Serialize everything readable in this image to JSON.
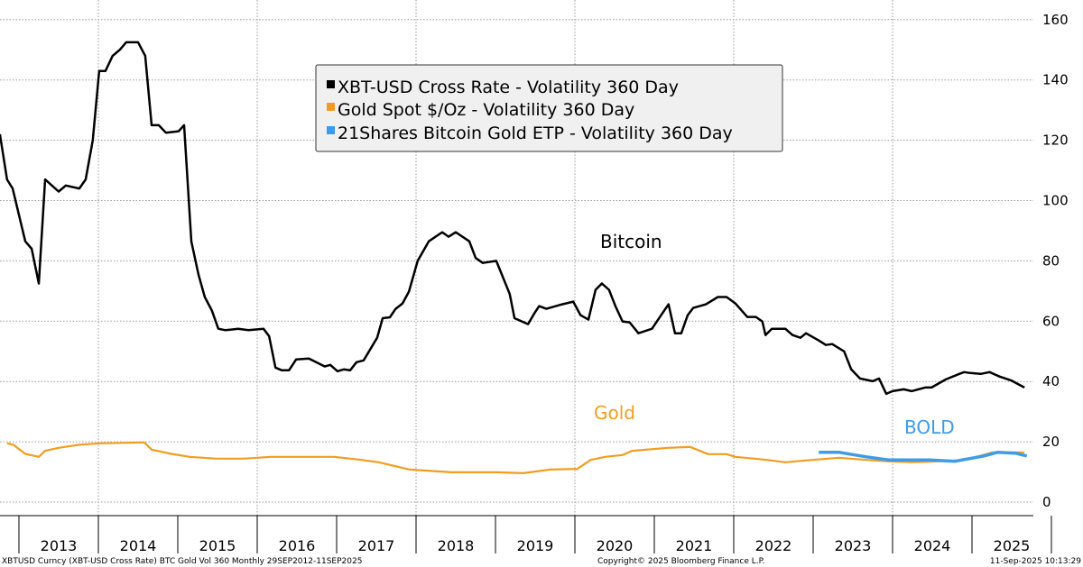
{
  "chart_data": {
    "type": "line",
    "title": "",
    "xlabel": "",
    "ylabel": "",
    "xlim": [
      2012.75,
      2025.7
    ],
    "ylim": [
      0,
      160
    ],
    "y_ticks": [
      "0",
      "20",
      "40",
      "60",
      "80",
      "100",
      "120",
      "140",
      "160"
    ],
    "x_tick_labels": [
      "2013",
      "2014",
      "2015",
      "2016",
      "2017",
      "2018",
      "2019",
      "2020",
      "2021",
      "2022",
      "2023",
      "2024",
      "2025"
    ],
    "grid": true,
    "legend_position": "top-center",
    "legend": [
      {
        "label": "XBT-USD Cross Rate - Volatility 360 Day",
        "color": "#000000"
      },
      {
        "label": "Gold Spot $/Oz - Volatility 360 Day",
        "color": "#F39C1F"
      },
      {
        "label": "21Shares Bitcoin Gold ETP - Volatility 360 Day",
        "color": "#3D9BE9"
      }
    ],
    "annotations": [
      {
        "text": "Bitcoin",
        "color": "#000000"
      },
      {
        "text": "Gold",
        "color": "#F39C1F"
      },
      {
        "text": "BOLD",
        "color": "#3D9BE9"
      }
    ],
    "series": [
      {
        "name": "XBT-USD Cross Rate - Volatility 360 Day",
        "color": "#000000",
        "x": [
          2012.76,
          2012.85,
          2012.92,
          2013.08,
          2013.16,
          2013.25,
          2013.33,
          2013.5,
          2013.59,
          2013.76,
          2013.84,
          2013.93,
          2014.01,
          2014.09,
          2014.18,
          2014.27,
          2014.35,
          2014.5,
          2014.59,
          2014.67,
          2014.76,
          2014.85,
          2015.01,
          2015.08,
          2015.17,
          2015.26,
          2015.34,
          2015.43,
          2015.51,
          2015.6,
          2015.76,
          2015.89,
          2016.08,
          2016.15,
          2016.23,
          2016.31,
          2016.4,
          2016.49,
          2016.65,
          2016.85,
          2016.92,
          2017.01,
          2017.09,
          2017.17,
          2017.25,
          2017.34,
          2017.51,
          2017.58,
          2017.67,
          2017.74,
          2017.83,
          2017.91,
          2018.02,
          2018.16,
          2018.33,
          2018.41,
          2018.5,
          2018.67,
          2018.75,
          2018.84,
          2019.01,
          2019.18,
          2019.24,
          2019.41,
          2019.49,
          2019.55,
          2019.64,
          2019.84,
          2019.98,
          2020.07,
          2020.17,
          2020.26,
          2020.34,
          2020.43,
          2020.51,
          2020.6,
          2020.69,
          2020.8,
          2020.97,
          2021.14,
          2021.18,
          2021.26,
          2021.34,
          2021.42,
          2021.49,
          2021.65,
          2021.8,
          2021.91,
          2022.02,
          2022.17,
          2022.28,
          2022.36,
          2022.4,
          2022.48,
          2022.65,
          2022.74,
          2022.84,
          2022.91,
          2023.07,
          2023.16,
          2023.24,
          2023.39,
          2023.48,
          2023.59,
          2023.75,
          2023.83,
          2023.92,
          2024.0,
          2024.14,
          2024.24,
          2024.41,
          2024.49,
          2024.67,
          2024.84,
          2024.9,
          2024.98,
          2025.11,
          2025.22,
          2025.35,
          2025.49,
          2025.66
        ],
        "y": [
          122,
          107,
          104,
          86.5,
          84,
          72.5,
          107,
          103,
          105,
          104,
          107,
          120,
          143,
          143,
          148,
          150,
          152.5,
          152.5,
          148,
          125,
          125,
          122.5,
          123,
          125,
          86.5,
          75.5,
          68,
          63.5,
          57.5,
          57,
          57.5,
          57,
          57.5,
          55,
          44.6,
          43.7,
          43.7,
          47.3,
          47.6,
          45,
          45.5,
          43.4,
          44,
          43.7,
          46.4,
          47,
          54.5,
          61,
          61.3,
          64,
          65.9,
          69.8,
          80,
          86.5,
          89.5,
          88,
          89.5,
          86.5,
          81,
          79.3,
          80,
          69,
          61,
          59,
          62.6,
          65,
          64.1,
          65.6,
          66.5,
          62,
          60.5,
          70.4,
          72.5,
          70.4,
          65,
          59.9,
          59.6,
          56,
          57.5,
          64.1,
          65.6,
          56,
          56,
          62,
          64.4,
          65.6,
          68,
          68,
          65.9,
          61.4,
          61.4,
          59.9,
          55.4,
          57.5,
          57.5,
          55.4,
          54.5,
          56,
          53.6,
          52.1,
          52.4,
          50,
          44,
          41,
          40.1,
          41,
          35.9,
          36.8,
          37.4,
          36.8,
          38,
          38,
          40.7,
          42.5,
          43.1,
          42.8,
          42.5,
          43.1,
          41.6,
          40.4,
          38
        ]
      },
      {
        "name": "Gold Spot $/Oz - Volatility 360 Day",
        "color": "#F39C1F",
        "x": [
          2012.85,
          2012.93,
          2013.08,
          2013.25,
          2013.33,
          2013.5,
          2013.76,
          2014.01,
          2014.58,
          2014.67,
          2014.92,
          2015.15,
          2015.49,
          2015.83,
          2016.17,
          2016.51,
          2016.97,
          2017.31,
          2017.53,
          2017.92,
          2018.44,
          2019.01,
          2019.35,
          2019.69,
          2020.03,
          2020.2,
          2020.38,
          2020.6,
          2020.72,
          2021.17,
          2021.45,
          2021.68,
          2021.91,
          2022.02,
          2022.42,
          2022.65,
          2022.99,
          2023.33,
          2023.67,
          2023.95,
          2024.24,
          2024.58,
          2024.92,
          2025.26,
          2025.66
        ],
        "y": [
          19.5,
          19,
          16,
          15,
          17,
          18,
          19,
          19.5,
          19.8,
          17.4,
          16,
          15,
          14.4,
          14.4,
          15,
          15,
          15,
          14,
          13.2,
          10.8,
          9.9,
          9.9,
          9.6,
          10.8,
          11,
          14,
          15,
          15.6,
          17,
          18,
          18.3,
          15.9,
          15.9,
          15,
          14,
          13.2,
          14,
          14.7,
          14,
          13.5,
          13.2,
          13.5,
          14,
          16.5,
          16.5
        ]
      },
      {
        "name": "21Shares Bitcoin Gold ETP - Volatility 360 Day",
        "color": "#3D9BE9",
        "x": [
          2023.07,
          2023.33,
          2023.67,
          2023.95,
          2024.47,
          2024.78,
          2025.15,
          2025.32,
          2025.55,
          2025.69
        ],
        "y": [
          16.5,
          16.5,
          15,
          14,
          14,
          13.5,
          15.3,
          16.5,
          16.2,
          15.3
        ]
      }
    ]
  },
  "footer": {
    "source": "XBTUSD Curncy (XBT-USD Cross Rate) BTC Gold Vol 360  Monthly 29SEP2012-11SEP2025",
    "copyright": "Copyright© 2025 Bloomberg Finance L.P.",
    "timestamp": "11-Sep-2025 10:13:29"
  }
}
